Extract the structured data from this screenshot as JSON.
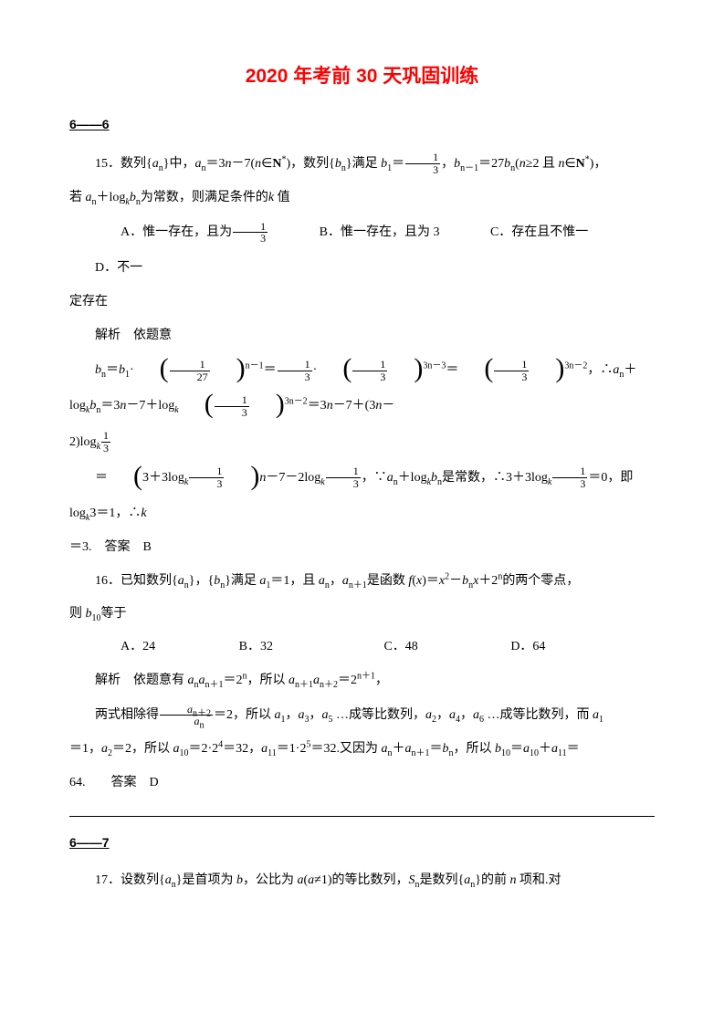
{
  "title": "2020 年考前 30 天巩固训练",
  "section1": "6——6",
  "section2": "6——7",
  "q15": {
    "num": "15．",
    "stem1_a": "数列{",
    "stem1_b": "}中，",
    "stem1_c": "＝3",
    "stem1_d": "－7(",
    "stem1_e": "∈",
    "stem1_f": ")，数列{",
    "stem1_g": "}满足 ",
    "stem1_h": "＝",
    "stem1_i": "，",
    "stem1_j": "＝27",
    "stem1_k": "(",
    "stem1_l": "≥2 且 ",
    "stem1_m": "∈",
    "stem1_n": ")，",
    "stem2_a": "若 ",
    "stem2_b": "＋log",
    "stem2_c": "为常数，则满足条件的",
    "stem2_d": " 值",
    "A": "A．惟一存在，且为",
    "B": "B．惟一存在，且为 3",
    "C": "C．存在且不惟一",
    "D": "D．不一",
    "D2": "定存在",
    "anal": "解析　依题意",
    "work1_a": "＝",
    "work1_b": "·",
    "work1_c": "＝",
    "work1_d": "·",
    "work1_e": "＝",
    "work1_f": "，∴",
    "work1_g": "＋log",
    "work1_h": "＝3",
    "work1_i": "－7＋log",
    "work1_j": "＝3",
    "work1_k": "－7＋(3",
    "work1_l": "－",
    "work2_a": "2)log",
    "work3_a": "＝",
    "work3_b": "－7－2log",
    "work3_c": "，∵",
    "work3_d": "＋log",
    "work3_e": "是常数，∴3＋3log",
    "work3_f": "＝0，即 log",
    "work3_g": "3＝1，∴",
    "ans_a": "＝3.　答案　B"
  },
  "q16": {
    "num": "16．",
    "stem1_a": "已知数列{",
    "stem1_b": "}，{",
    "stem1_c": "}满足 ",
    "stem1_d": "＝1，且 ",
    "stem1_e": "，",
    "stem1_f": "是函数 ",
    "stem1_g": "(",
    "stem1_h": ")＝",
    "stem1_i": "－",
    "stem1_j": "＋2",
    "stem1_k": "的两个零点，",
    "stem2_a": "则 ",
    "stem2_b": "等于",
    "A": "A．24",
    "B": "B．32",
    "C": "C．48",
    "D": "D．64",
    "anal_a": "解析　依题意有 ",
    "anal_b": "＝2",
    "anal_c": "，所以 ",
    "anal_d": "＝2",
    "anal_e": "，",
    "work_a": "两式相除得",
    "work_b": "＝2，所以 ",
    "work_c": "，",
    "work_d": "，",
    "work_e": " …成等比数列，",
    "work_f": "，",
    "work_g": "，",
    "work_h": " …成等比数列，而 ",
    "work2_a": "＝1，",
    "work2_b": "＝2，所以 ",
    "work2_c": "＝2·2",
    "work2_d": "＝32，",
    "work2_e": "＝1·2",
    "work2_f": "＝32.又因为 ",
    "work2_g": "＋",
    "work2_h": "＝",
    "work2_i": "，所以 ",
    "work2_j": "＝",
    "work2_k": "＋",
    "work2_l": "＝",
    "ans": "64.　　答案　D"
  },
  "q17": {
    "num": "17．",
    "stem_a": "设数列{",
    "stem_b": "}是首项为 ",
    "stem_c": "，公比为 ",
    "stem_d": "(",
    "stem_e": "≠1)的等比数列，",
    "stem_f": "是数列{",
    "stem_g": "}的前 ",
    "stem_h": " 项和.对"
  },
  "frac": {
    "one": "1",
    "three": "3",
    "twentyseven": "27"
  },
  "sym": {
    "an": "a",
    "bn": "b",
    "n": "n",
    "k": "k",
    "N": "N",
    "star": "*",
    "f": "f",
    "x": "x",
    "S": "S",
    "b": "b",
    "a": "a"
  },
  "sub": {
    "n": "n",
    "1": "1",
    "nm1": "n－1",
    "np1": "n＋1",
    "np2": "n＋2",
    "10": "10",
    "11": "11",
    "2": "2",
    "3": "3",
    "4": "4",
    "5": "5",
    "6": "6"
  },
  "sup": {
    "nm1": "n－1",
    "3nm3": "3n－3",
    "3nm2": "3n－2",
    "n": "n",
    "np1": "n＋1",
    "2": "2",
    "4": "4",
    "5": "5"
  },
  "paren": {
    "3p3log": "3＋3log"
  }
}
